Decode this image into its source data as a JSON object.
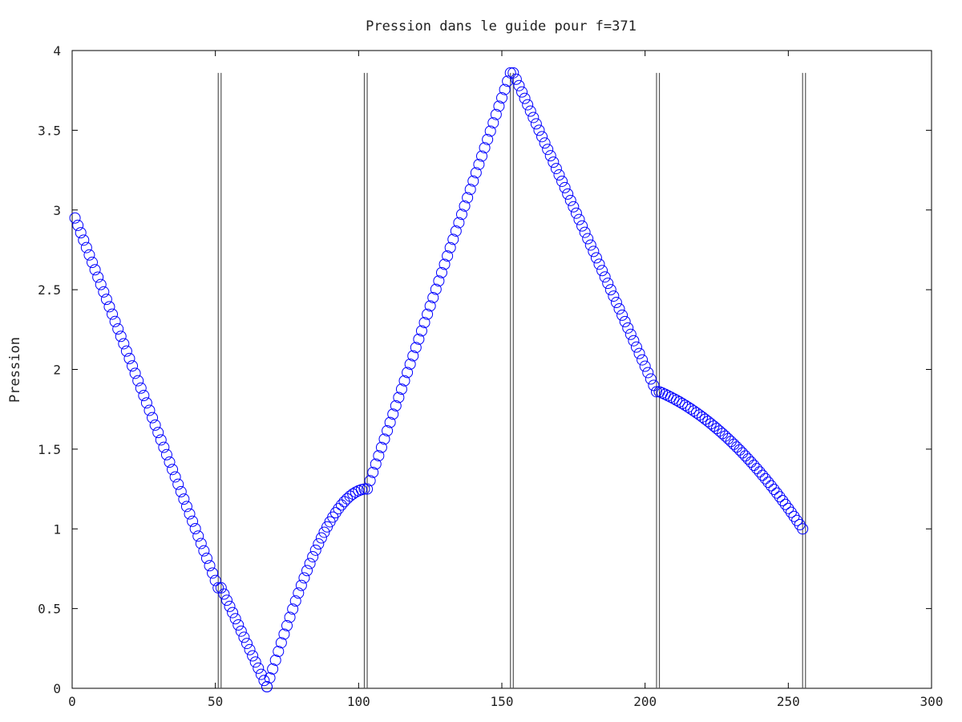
{
  "chart_data": {
    "type": "scatter",
    "title": "Pression dans le guide pour f=371",
    "xlabel": "",
    "ylabel": "Pression",
    "xlim": [
      0,
      300
    ],
    "ylim": [
      0,
      4
    ],
    "xticks": [
      0,
      50,
      100,
      150,
      200,
      250,
      300
    ],
    "yticks": [
      0,
      0.5,
      1,
      1.5,
      2,
      2.5,
      3,
      3.5,
      4
    ],
    "grid": false,
    "marker": "circle",
    "series_color": "#0000ff",
    "boundary_color": "#555555",
    "boundaries": [
      {
        "x": [
          51,
          52
        ],
        "height": 3.86
      },
      {
        "x": [
          102,
          103
        ],
        "height": 3.86
      },
      {
        "x": [
          153,
          154
        ],
        "height": 3.86
      },
      {
        "x": [
          204,
          205
        ],
        "height": 3.86
      },
      {
        "x": [
          255,
          256
        ],
        "height": 3.86
      }
    ],
    "series": [
      {
        "segments": [
          {
            "x0": 1,
            "x1": 51,
            "type": "linear",
            "y0": 2.95,
            "y1": 0.63
          },
          {
            "x0": 52,
            "x1": 68,
            "type": "linear",
            "y0": 0.63,
            "y1": 0.01
          },
          {
            "x0": 68,
            "x1": 102,
            "type": "curve",
            "y0": 0.01,
            "y1": 1.25
          },
          {
            "x0": 103,
            "x1": 153,
            "type": "linear",
            "y0": 1.25,
            "y1": 3.86
          },
          {
            "x0": 154,
            "x1": 204,
            "type": "linear",
            "y0": 3.86,
            "y1": 1.86
          },
          {
            "x0": 205,
            "x1": 255,
            "type": "arc",
            "y0": 1.86,
            "y1": 1.0
          }
        ]
      }
    ]
  }
}
